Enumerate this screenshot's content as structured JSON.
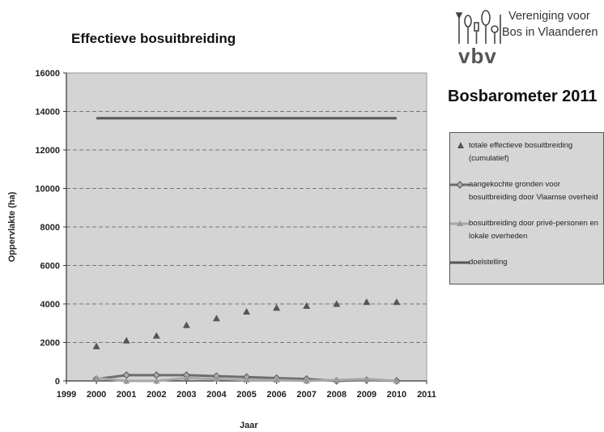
{
  "chart_data": {
    "type": "scatter",
    "title": "Effectieve bosuitbreiding",
    "xlabel": "Jaar",
    "ylabel": "Oppervlakte (ha)",
    "xlim": [
      1999,
      2011
    ],
    "ylim": [
      0,
      16000
    ],
    "x_ticks": [
      1999,
      2000,
      2001,
      2002,
      2003,
      2004,
      2005,
      2006,
      2007,
      2008,
      2009,
      2010,
      2011
    ],
    "y_ticks": [
      0,
      2000,
      4000,
      6000,
      8000,
      10000,
      12000,
      14000,
      16000
    ],
    "grid": "horizontal dashed",
    "legend_position": "right",
    "series": [
      {
        "name": "totale effectieve bosuitbreiding (cumulatief)",
        "style": "triangle-markers",
        "color": "#555555",
        "x": [
          2000,
          2001,
          2002,
          2003,
          2004,
          2005,
          2006,
          2007,
          2008,
          2009,
          2010
        ],
        "y": [
          1800,
          2100,
          2350,
          2900,
          3250,
          3600,
          3800,
          3900,
          4000,
          4100,
          4100
        ]
      },
      {
        "name": "aangekochte gronden voor bosuitbreiding door Vlaamse overheid",
        "style": "line-diamond",
        "color": "#6e6e6e",
        "x": [
          2000,
          2001,
          2002,
          2003,
          2004,
          2005,
          2006,
          2007,
          2008,
          2009,
          2010
        ],
        "y": [
          100,
          300,
          300,
          300,
          250,
          200,
          150,
          100,
          0,
          50,
          0
        ]
      },
      {
        "name": "bosuitbreiding door privé-personen en lokale overheden",
        "style": "line-triangle",
        "color": "#a8a8a8",
        "x": [
          2000,
          2001,
          2002,
          2003,
          2004,
          2005,
          2006,
          2007,
          2008,
          2009,
          2010
        ],
        "y": [
          150,
          0,
          0,
          150,
          100,
          50,
          50,
          0,
          50,
          100,
          0
        ]
      },
      {
        "name": "doelstelling",
        "style": "line",
        "color": "#555555",
        "x": [
          2000,
          2010
        ],
        "y": [
          13650,
          13650
        ]
      }
    ]
  },
  "side_title": "Bosbarometer 2011",
  "logo": {
    "line1": "Vereniging voor",
    "line2": "Bos in Vlaanderen",
    "abbr": "vbv"
  },
  "legend": {
    "items": [
      "totale effectieve bosuitbreiding (cumulatief)",
      "aangekochte gronden voor bosuitbreiding door Vlaamse  overheid",
      "bosuitbreiding door privé-personen en lokale overheden",
      "doelstelling"
    ]
  },
  "colors": {
    "plot_background": "#d4d4d4",
    "gridline": "#777777"
  }
}
